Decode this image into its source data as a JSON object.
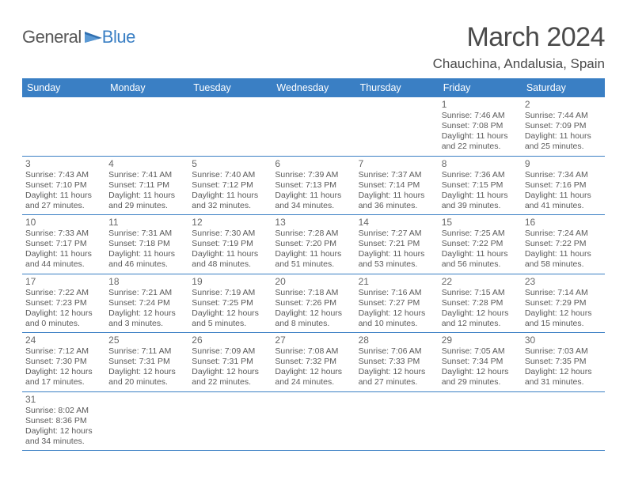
{
  "logo": {
    "general": "General",
    "blue": "Blue",
    "accent": "#3a7fc4"
  },
  "header": {
    "title": "March 2024",
    "location": "Chauchina, Andalusia, Spain"
  },
  "calendar": {
    "headers": [
      "Sunday",
      "Monday",
      "Tuesday",
      "Wednesday",
      "Thursday",
      "Friday",
      "Saturday"
    ],
    "header_bg": "#3a7fc4",
    "header_fg": "#ffffff",
    "border_color": "#3a7fc4",
    "weeks": [
      [
        null,
        null,
        null,
        null,
        null,
        {
          "n": "1",
          "sr": "Sunrise: 7:46 AM",
          "ss": "Sunset: 7:08 PM",
          "d1": "Daylight: 11 hours",
          "d2": "and 22 minutes."
        },
        {
          "n": "2",
          "sr": "Sunrise: 7:44 AM",
          "ss": "Sunset: 7:09 PM",
          "d1": "Daylight: 11 hours",
          "d2": "and 25 minutes."
        }
      ],
      [
        {
          "n": "3",
          "sr": "Sunrise: 7:43 AM",
          "ss": "Sunset: 7:10 PM",
          "d1": "Daylight: 11 hours",
          "d2": "and 27 minutes."
        },
        {
          "n": "4",
          "sr": "Sunrise: 7:41 AM",
          "ss": "Sunset: 7:11 PM",
          "d1": "Daylight: 11 hours",
          "d2": "and 29 minutes."
        },
        {
          "n": "5",
          "sr": "Sunrise: 7:40 AM",
          "ss": "Sunset: 7:12 PM",
          "d1": "Daylight: 11 hours",
          "d2": "and 32 minutes."
        },
        {
          "n": "6",
          "sr": "Sunrise: 7:39 AM",
          "ss": "Sunset: 7:13 PM",
          "d1": "Daylight: 11 hours",
          "d2": "and 34 minutes."
        },
        {
          "n": "7",
          "sr": "Sunrise: 7:37 AM",
          "ss": "Sunset: 7:14 PM",
          "d1": "Daylight: 11 hours",
          "d2": "and 36 minutes."
        },
        {
          "n": "8",
          "sr": "Sunrise: 7:36 AM",
          "ss": "Sunset: 7:15 PM",
          "d1": "Daylight: 11 hours",
          "d2": "and 39 minutes."
        },
        {
          "n": "9",
          "sr": "Sunrise: 7:34 AM",
          "ss": "Sunset: 7:16 PM",
          "d1": "Daylight: 11 hours",
          "d2": "and 41 minutes."
        }
      ],
      [
        {
          "n": "10",
          "sr": "Sunrise: 7:33 AM",
          "ss": "Sunset: 7:17 PM",
          "d1": "Daylight: 11 hours",
          "d2": "and 44 minutes."
        },
        {
          "n": "11",
          "sr": "Sunrise: 7:31 AM",
          "ss": "Sunset: 7:18 PM",
          "d1": "Daylight: 11 hours",
          "d2": "and 46 minutes."
        },
        {
          "n": "12",
          "sr": "Sunrise: 7:30 AM",
          "ss": "Sunset: 7:19 PM",
          "d1": "Daylight: 11 hours",
          "d2": "and 48 minutes."
        },
        {
          "n": "13",
          "sr": "Sunrise: 7:28 AM",
          "ss": "Sunset: 7:20 PM",
          "d1": "Daylight: 11 hours",
          "d2": "and 51 minutes."
        },
        {
          "n": "14",
          "sr": "Sunrise: 7:27 AM",
          "ss": "Sunset: 7:21 PM",
          "d1": "Daylight: 11 hours",
          "d2": "and 53 minutes."
        },
        {
          "n": "15",
          "sr": "Sunrise: 7:25 AM",
          "ss": "Sunset: 7:22 PM",
          "d1": "Daylight: 11 hours",
          "d2": "and 56 minutes."
        },
        {
          "n": "16",
          "sr": "Sunrise: 7:24 AM",
          "ss": "Sunset: 7:22 PM",
          "d1": "Daylight: 11 hours",
          "d2": "and 58 minutes."
        }
      ],
      [
        {
          "n": "17",
          "sr": "Sunrise: 7:22 AM",
          "ss": "Sunset: 7:23 PM",
          "d1": "Daylight: 12 hours",
          "d2": "and 0 minutes."
        },
        {
          "n": "18",
          "sr": "Sunrise: 7:21 AM",
          "ss": "Sunset: 7:24 PM",
          "d1": "Daylight: 12 hours",
          "d2": "and 3 minutes."
        },
        {
          "n": "19",
          "sr": "Sunrise: 7:19 AM",
          "ss": "Sunset: 7:25 PM",
          "d1": "Daylight: 12 hours",
          "d2": "and 5 minutes."
        },
        {
          "n": "20",
          "sr": "Sunrise: 7:18 AM",
          "ss": "Sunset: 7:26 PM",
          "d1": "Daylight: 12 hours",
          "d2": "and 8 minutes."
        },
        {
          "n": "21",
          "sr": "Sunrise: 7:16 AM",
          "ss": "Sunset: 7:27 PM",
          "d1": "Daylight: 12 hours",
          "d2": "and 10 minutes."
        },
        {
          "n": "22",
          "sr": "Sunrise: 7:15 AM",
          "ss": "Sunset: 7:28 PM",
          "d1": "Daylight: 12 hours",
          "d2": "and 12 minutes."
        },
        {
          "n": "23",
          "sr": "Sunrise: 7:14 AM",
          "ss": "Sunset: 7:29 PM",
          "d1": "Daylight: 12 hours",
          "d2": "and 15 minutes."
        }
      ],
      [
        {
          "n": "24",
          "sr": "Sunrise: 7:12 AM",
          "ss": "Sunset: 7:30 PM",
          "d1": "Daylight: 12 hours",
          "d2": "and 17 minutes."
        },
        {
          "n": "25",
          "sr": "Sunrise: 7:11 AM",
          "ss": "Sunset: 7:31 PM",
          "d1": "Daylight: 12 hours",
          "d2": "and 20 minutes."
        },
        {
          "n": "26",
          "sr": "Sunrise: 7:09 AM",
          "ss": "Sunset: 7:31 PM",
          "d1": "Daylight: 12 hours",
          "d2": "and 22 minutes."
        },
        {
          "n": "27",
          "sr": "Sunrise: 7:08 AM",
          "ss": "Sunset: 7:32 PM",
          "d1": "Daylight: 12 hours",
          "d2": "and 24 minutes."
        },
        {
          "n": "28",
          "sr": "Sunrise: 7:06 AM",
          "ss": "Sunset: 7:33 PM",
          "d1": "Daylight: 12 hours",
          "d2": "and 27 minutes."
        },
        {
          "n": "29",
          "sr": "Sunrise: 7:05 AM",
          "ss": "Sunset: 7:34 PM",
          "d1": "Daylight: 12 hours",
          "d2": "and 29 minutes."
        },
        {
          "n": "30",
          "sr": "Sunrise: 7:03 AM",
          "ss": "Sunset: 7:35 PM",
          "d1": "Daylight: 12 hours",
          "d2": "and 31 minutes."
        }
      ],
      [
        {
          "n": "31",
          "sr": "Sunrise: 8:02 AM",
          "ss": "Sunset: 8:36 PM",
          "d1": "Daylight: 12 hours",
          "d2": "and 34 minutes."
        },
        null,
        null,
        null,
        null,
        null,
        null
      ]
    ]
  }
}
